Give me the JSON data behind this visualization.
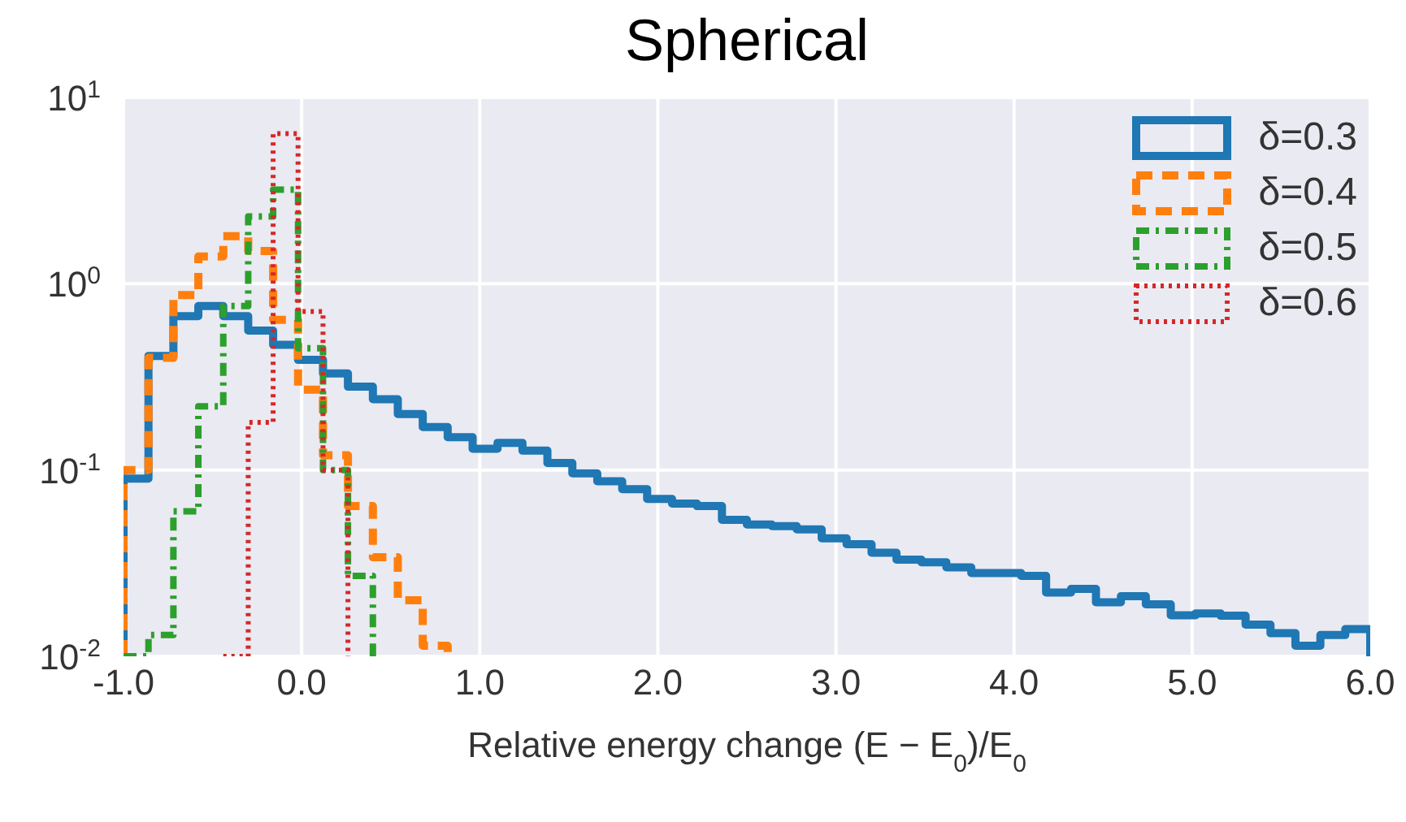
{
  "chart_data": {
    "type": "histogram",
    "title": "Spherical",
    "xlabel": "Relative energy change (E − E$_{0}$)/E$_{0}$",
    "bins": [
      -1.0,
      -0.86,
      -0.72,
      -0.58,
      -0.44,
      -0.3,
      -0.16,
      -0.02,
      0.12,
      0.26,
      0.4,
      0.54,
      0.68,
      0.82,
      0.96,
      1.1,
      1.24,
      1.38,
      1.52,
      1.66,
      1.8,
      1.94,
      2.08,
      2.22,
      2.36,
      2.5,
      2.64,
      2.78,
      2.92,
      3.06,
      3.2,
      3.34,
      3.48,
      3.62,
      3.76,
      3.9,
      4.04,
      4.18,
      4.32,
      4.46,
      4.6,
      4.74,
      4.88,
      5.02,
      5.16,
      5.3,
      5.44,
      5.58,
      5.72,
      5.86,
      6.0
    ],
    "series": [
      {
        "name": "δ=0.3",
        "color": "#1f77b4",
        "line_style": "solid",
        "values": [
          0.09,
          0.41,
          0.67,
          0.76,
          0.67,
          0.56,
          0.47,
          0.39,
          0.33,
          0.28,
          0.24,
          0.2,
          0.17,
          0.15,
          0.13,
          0.14,
          0.127,
          0.109,
          0.096,
          0.087,
          0.079,
          0.07,
          0.066,
          0.064,
          0.054,
          0.051,
          0.05,
          0.048,
          0.043,
          0.04,
          0.036,
          0.033,
          0.032,
          0.03,
          0.028,
          0.028,
          0.027,
          0.022,
          0.023,
          0.0195,
          0.021,
          0.019,
          0.0166,
          0.017,
          0.0165,
          0.0148,
          0.0133,
          0.0114,
          0.013,
          0.014
        ]
      },
      {
        "name": "δ=0.4",
        "color": "#ff7f0e",
        "line_style": "dashed",
        "bins": [
          -1.0,
          -0.86,
          -0.72,
          -0.58,
          -0.44,
          -0.3,
          -0.16,
          -0.02,
          0.12,
          0.26,
          0.4,
          0.54,
          0.68,
          0.82
        ],
        "values": [
          0.1,
          0.4,
          0.87,
          1.4,
          1.8,
          1.5,
          0.64,
          0.27,
          0.12,
          0.064,
          0.034,
          0.02,
          0.0114
        ]
      },
      {
        "name": "δ=0.5",
        "color": "#2ca02c",
        "line_style": "dashdot",
        "bins": [
          -1.0,
          -0.86,
          -0.72,
          -0.58,
          -0.44,
          -0.3,
          -0.16,
          -0.02,
          0.12,
          0.26,
          0.4
        ],
        "values": [
          0.01,
          0.013,
          0.06,
          0.22,
          0.76,
          2.3,
          3.2,
          0.45,
          0.1,
          0.027
        ]
      },
      {
        "name": "δ=0.6",
        "color": "#d62728",
        "line_style": "dotted",
        "bins": [
          -0.44,
          -0.3,
          -0.16,
          -0.02,
          0.12,
          0.26
        ],
        "values": [
          0.01,
          0.18,
          6.4,
          0.71,
          0.1
        ]
      }
    ],
    "log": "y",
    "xlim": [
      -1.0,
      6.0
    ],
    "xticks": [
      {
        "value": -1,
        "label": "-1.0"
      },
      {
        "value": 0,
        "label": "0.0"
      },
      {
        "value": 1,
        "label": "1.0"
      },
      {
        "value": 2,
        "label": "2.0"
      },
      {
        "value": 3,
        "label": "3.0"
      },
      {
        "value": 4,
        "label": "4.0"
      },
      {
        "value": 5,
        "label": "5.0"
      },
      {
        "value": 6,
        "label": "6.0"
      }
    ],
    "ylim": [
      0.01,
      10
    ],
    "yticks": [
      {
        "value": 0.01,
        "label": "10$^{-2}$"
      },
      {
        "value": 0.1,
        "label": "10$^{-1}$"
      },
      {
        "value": 1,
        "label": "10$^{0}$"
      },
      {
        "value": 10,
        "label": "10$^{1}$"
      }
    ],
    "grid": true,
    "legend": "top right"
  }
}
